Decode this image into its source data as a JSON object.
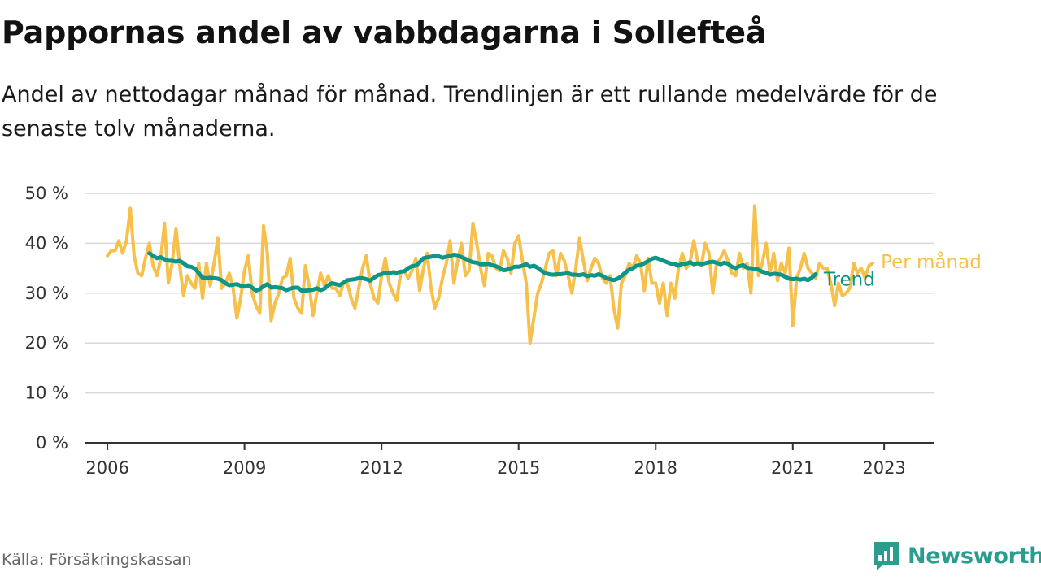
{
  "title": "Pappornas andel av vabbdagarna i Sollefteå",
  "subtitle": "Andel av nettodagar månad för månad. Trendlinjen är ett rullande medelvärde för de senaste tolv månaderna.",
  "source": "Källa: Försäkringskassan",
  "brand": {
    "name": "Newsworthy",
    "icon": "bar-chart-speech-icon",
    "color": "#2a9d8f"
  },
  "chart_data": {
    "type": "line",
    "title": "",
    "xlabel": "",
    "ylabel": "",
    "ylim": [
      0,
      50
    ],
    "xlim": [
      "2005-07",
      "2024-02"
    ],
    "y_ticks": [
      "0 %",
      "10 %",
      "20 %",
      "30 %",
      "40 %",
      "50 %"
    ],
    "x_ticks": [
      "2006",
      "2009",
      "2012",
      "2015",
      "2018",
      "2021",
      "2023"
    ],
    "grid": true,
    "series": [
      {
        "name": "Per månad",
        "color": "#f7c04a",
        "start": "2006-01",
        "values": [
          37.5,
          38.5,
          38.5,
          40.5,
          38,
          40.5,
          47,
          37.5,
          34,
          33.5,
          37,
          40,
          35.5,
          33.5,
          37,
          44,
          32,
          36,
          43,
          35.5,
          29.5,
          33.5,
          32,
          31,
          36,
          29,
          36,
          31.5,
          36,
          41,
          31,
          32,
          34,
          31,
          25,
          29,
          34.5,
          37.5,
          30,
          27.5,
          26,
          43.5,
          38,
          24.5,
          28,
          30,
          33,
          33.5,
          37,
          29,
          27,
          26,
          35.5,
          31.5,
          25.5,
          30,
          34,
          31.5,
          33.5,
          31,
          31,
          29.5,
          32,
          32,
          29,
          27,
          31,
          35,
          37.5,
          32,
          29,
          28,
          33.5,
          37,
          32,
          30,
          28.5,
          34,
          34.5,
          33,
          34.5,
          37,
          30.5,
          35,
          38,
          31,
          27,
          29,
          33,
          36,
          40.5,
          32,
          36.5,
          40,
          33.5,
          34.5,
          44,
          40,
          35,
          31.5,
          38,
          37.5,
          35,
          34.5,
          38.5,
          37,
          34,
          40,
          41.5,
          36.5,
          32,
          20,
          25,
          30,
          32,
          35,
          38,
          38.5,
          33.5,
          38,
          36.5,
          33.5,
          30,
          35,
          41,
          36.5,
          32.5,
          35,
          37,
          36,
          33,
          32,
          33.5,
          27,
          23,
          32,
          33.5,
          36,
          35,
          37.5,
          36,
          30.5,
          37,
          32,
          32,
          28,
          32,
          25.5,
          32,
          29,
          35,
          38,
          35,
          36,
          40.5,
          36.5,
          35.5,
          40,
          38,
          30,
          36,
          37,
          38.5,
          36.5,
          34,
          33.5,
          38,
          35,
          36,
          30,
          47.5,
          33.5,
          36,
          40,
          34,
          38,
          32.5,
          36,
          34,
          39,
          23.5,
          33,
          35,
          38,
          35,
          34,
          33,
          36,
          35,
          35,
          32,
          27.5,
          32,
          29.5,
          30,
          31,
          36,
          34,
          35,
          33,
          35.5,
          36
        ]
      },
      {
        "name": "Trend",
        "color": "#0f9488",
        "start": "2006-12",
        "values": [
          38,
          37.5,
          37,
          37.2,
          36.8,
          36.5,
          36.5,
          36.3,
          36.5,
          36,
          35.4,
          35.3,
          34.9,
          34,
          33.1,
          33,
          33.1,
          33,
          32.9,
          32.6,
          32,
          31.6,
          31.7,
          31.8,
          31.5,
          31.3,
          31.6,
          31.1,
          30.5,
          30.8,
          31.4,
          31.8,
          31.1,
          31.2,
          31.1,
          31,
          30.6,
          30.9,
          31.1,
          31.1,
          30.5,
          30.5,
          30.6,
          30.7,
          31,
          30.6,
          30.9,
          31.6,
          32,
          31.8,
          31.6,
          32.1,
          32.6,
          32.7,
          32.8,
          33,
          33,
          32.8,
          32.5,
          33.1,
          33.6,
          33.8,
          34.1,
          34,
          34.2,
          34.1,
          34.3,
          34.4,
          35,
          35.4,
          35.5,
          36.2,
          37,
          37.2,
          37.3,
          37.5,
          37.4,
          37.1,
          37.3,
          37.5,
          37.7,
          37.6,
          37.2,
          36.9,
          36.5,
          36.2,
          36.1,
          35.8,
          35.8,
          35.9,
          35.6,
          35.4,
          35.1,
          34.6,
          34.7,
          35,
          35.3,
          35.3,
          35.5,
          35.8,
          35.3,
          35.5,
          35.1,
          34.5,
          34,
          33.8,
          33.7,
          33.8,
          33.8,
          33.9,
          34,
          33.7,
          33.7,
          33.6,
          33.8,
          33.4,
          33.6,
          33.5,
          33.8,
          33.5,
          33,
          32.8,
          32.6,
          32.9,
          33.4,
          34.1,
          34.7,
          35,
          35.5,
          35.6,
          36,
          36.4,
          36.9,
          37.1,
          36.8,
          36.5,
          36.2,
          35.9,
          35.9,
          35.5,
          35.9,
          35.9,
          36.2,
          35.8,
          36,
          35.8,
          36,
          36.2,
          36.3,
          36.1,
          35.8,
          36.1,
          35.9,
          35.3,
          35,
          35.4,
          35.6,
          35.1,
          35,
          34.9,
          34.7,
          34.3,
          34.1,
          33.7,
          33.9,
          33.8,
          33.7,
          33.3,
          32.9,
          32.8,
          32.9,
          32.7,
          32.9,
          32.6,
          33.1,
          33.8
        ]
      }
    ]
  }
}
